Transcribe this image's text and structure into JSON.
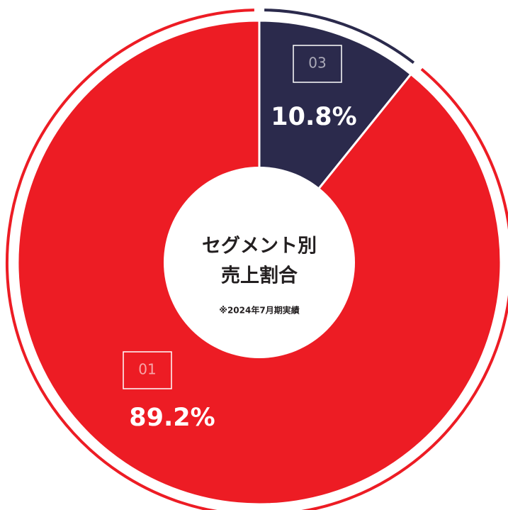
{
  "chart_data": {
    "type": "pie",
    "donut": true,
    "title_lines": [
      "セグメント別",
      "売上割合"
    ],
    "note": "※2024年7月期実績",
    "categories": [
      "01",
      "03"
    ],
    "values": [
      89.2,
      10.8
    ],
    "value_labels": [
      "89.2%",
      "10.8%"
    ],
    "colors": [
      "#ed1c24",
      "#2b2a4c"
    ]
  }
}
